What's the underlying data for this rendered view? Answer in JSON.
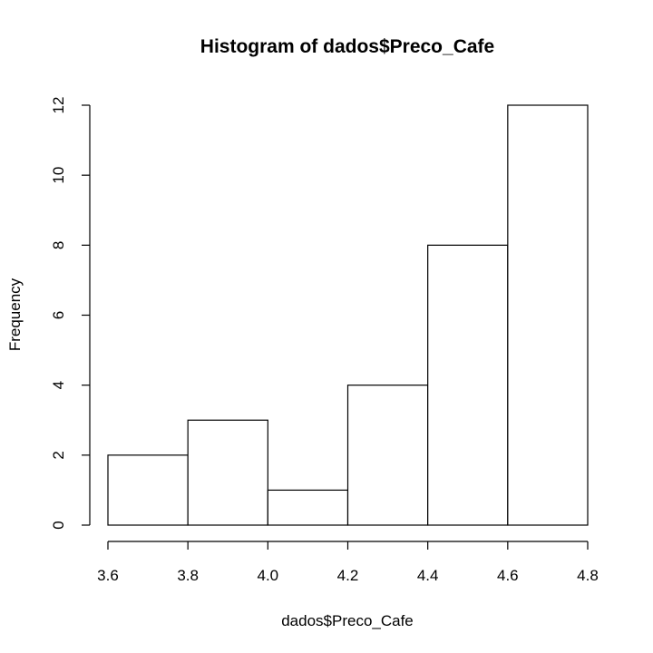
{
  "chart_data": {
    "type": "bar",
    "title": "Histogram of dados$Preco_Cafe",
    "xlabel": "dados$Preco_Cafe",
    "ylabel": "Frequency",
    "bins": [
      {
        "start": 3.6,
        "end": 3.8,
        "count": 2
      },
      {
        "start": 3.8,
        "end": 4.0,
        "count": 3
      },
      {
        "start": 4.0,
        "end": 4.2,
        "count": 1
      },
      {
        "start": 4.2,
        "end": 4.4,
        "count": 4
      },
      {
        "start": 4.4,
        "end": 4.6,
        "count": 8
      },
      {
        "start": 4.6,
        "end": 4.8,
        "count": 12
      }
    ],
    "xlim": [
      3.6,
      4.8
    ],
    "ylim": [
      0,
      12
    ],
    "x_ticks": [
      "3.6",
      "3.8",
      "4.0",
      "4.2",
      "4.4",
      "4.6",
      "4.8"
    ],
    "y_ticks": [
      "0",
      "2",
      "4",
      "6",
      "8",
      "10",
      "12"
    ],
    "grid": false,
    "bar_fill": "#ffffff",
    "bar_stroke": "#000000"
  }
}
